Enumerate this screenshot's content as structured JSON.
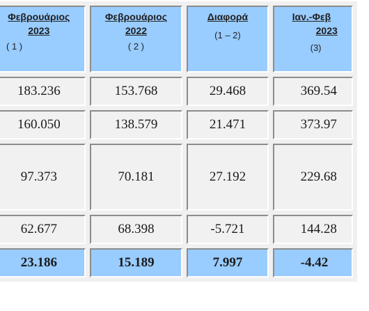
{
  "headers": [
    {
      "line1": "Φεβρουάριος ",
      "line2": "2023",
      "sub": "( 1 )"
    },
    {
      "line1": "Φεβρουάριος ",
      "line2": "2022",
      "sub": "( 2 )"
    },
    {
      "line1": "Διαφορά",
      "line2": "",
      "sub": "(1 – 2)"
    },
    {
      "line1": "Ιαν.-Φεβ",
      "line2": "2023",
      "sub": "(3)"
    }
  ],
  "rows": [
    [
      "183.236",
      "153.768",
      "29.468",
      "369.54"
    ],
    [
      "160.050",
      "138.579",
      "21.471",
      "373.97"
    ],
    [
      "97.373",
      "70.181",
      "27.192",
      "229.68"
    ],
    [
      "62.677",
      "68.398",
      "-5.721",
      "144.28"
    ]
  ],
  "total": [
    "23.186",
    "15.189",
    "7.997",
    "-4.42"
  ],
  "colors": {
    "header_bg": "#99ccff",
    "cell_bg": "#f1f1f1",
    "total_bg": "#99ccff"
  }
}
